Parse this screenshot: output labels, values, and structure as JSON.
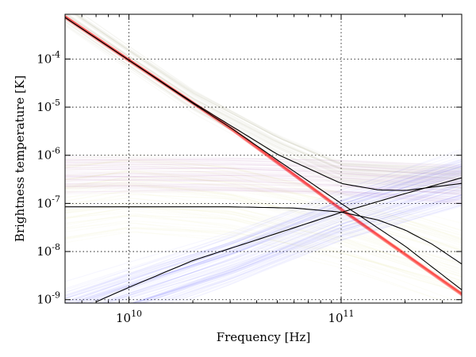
{
  "chart_data": {
    "type": "line",
    "xlabel": "Frequency [Hz]",
    "ylabel": "Brightness temperature [K]",
    "xscale": "log",
    "yscale": "log",
    "xlim": [
      5000000000.0,
      370000000000.0
    ],
    "ylim": [
      8.5e-10,
      0.00085
    ],
    "grid": true,
    "x_ticks": [
      {
        "value": 10000000000.0,
        "base": "10",
        "exp": "10"
      },
      {
        "value": 100000000000.0,
        "base": "10",
        "exp": "11"
      }
    ],
    "y_ticks": [
      {
        "value": 1e-09,
        "base": "10",
        "exp": "-9"
      },
      {
        "value": 1e-08,
        "base": "10",
        "exp": "-8"
      },
      {
        "value": 1e-07,
        "base": "10",
        "exp": "-7"
      },
      {
        "value": 1e-06,
        "base": "10",
        "exp": "-6"
      },
      {
        "value": 1e-05,
        "base": "10",
        "exp": "-5"
      },
      {
        "value": 0.0001,
        "base": "10",
        "exp": "-4"
      }
    ],
    "bands": [
      {
        "color": "#ff0000",
        "opacity": 0.05,
        "count": 60,
        "spread": 0.04,
        "x": [
          5000000000.0,
          10000000000.0,
          30000000000.0,
          100000000000.0,
          370000000000.0
        ],
        "y": [
          0.00075,
          9.5e-05,
          3.7e-06,
          7.5e-08,
          1.3e-09
        ]
      },
      {
        "color": "#0000ff",
        "opacity": 0.035,
        "count": 90,
        "spread": 0.55,
        "x": [
          5000000000.0,
          10000000000.0,
          30000000000.0,
          100000000000.0,
          370000000000.0
        ],
        "y": [
          5e-10,
          1.4e-09,
          7e-09,
          5.5e-08,
          3.2e-07
        ]
      },
      {
        "color": "#800080",
        "opacity": 0.03,
        "count": 60,
        "spread": 0.35,
        "x": [
          5000000000.0,
          10000000000.0,
          30000000000.0,
          100000000000.0,
          370000000000.0
        ],
        "y": [
          4e-07,
          4e-07,
          4e-07,
          3.5e-07,
          2.5e-07
        ]
      },
      {
        "color": "#c8c820",
        "opacity": 0.03,
        "count": 60,
        "spread": 0.8,
        "x": [
          5000000000.0,
          10000000000.0,
          30000000000.0,
          100000000000.0,
          370000000000.0
        ],
        "y": [
          1e-07,
          1.5e-07,
          1e-07,
          3e-08,
          5e-09
        ]
      },
      {
        "color": "#7a7a40",
        "opacity": 0.035,
        "count": 40,
        "spread": 0.25,
        "x": [
          5000000000.0,
          10000000000.0,
          20000000000.0,
          30000000000.0,
          50000000000.0,
          100000000000.0,
          370000000000.0
        ],
        "y": [
          0.0008,
          0.0001,
          1.3e-05,
          5e-06,
          1.5e-06,
          4e-07,
          3e-07
        ]
      }
    ],
    "series": [
      {
        "color": "#000000",
        "x": [
          5000000000.0,
          10000000000.0,
          20000000000.0,
          30000000000.0,
          50000000000.0,
          100000000000.0,
          200000000000.0,
          370000000000.0
        ],
        "y": [
          0.00073,
          9.4e-05,
          1.2e-05,
          3.8e-06,
          8e-07,
          1e-07,
          1.3e-08,
          1.6e-09
        ]
      },
      {
        "color": "#000000",
        "x": [
          5000000000.0,
          10000000000.0,
          20000000000.0,
          30000000000.0,
          50000000000.0,
          100000000000.0,
          150000000000.0,
          200000000000.0,
          370000000000.0
        ],
        "y": [
          0.00073,
          9.5e-05,
          1.25e-05,
          4.2e-06,
          1.05e-06,
          2.6e-07,
          1.9e-07,
          1.85e-07,
          2.6e-07
        ]
      },
      {
        "color": "#000000",
        "x": [
          7000000000.0,
          10000000000.0,
          20000000000.0,
          50000000000.0,
          100000000000.0,
          200000000000.0,
          370000000000.0
        ],
        "y": [
          9e-10,
          1.8e-09,
          6.5e-09,
          2.4e-08,
          6.5e-08,
          1.6e-07,
          3.4e-07
        ]
      },
      {
        "color": "#000000",
        "x": [
          5000000000.0,
          10000000000.0,
          30000000000.0,
          60000000000.0,
          100000000000.0,
          150000000000.0,
          200000000000.0,
          270000000000.0,
          370000000000.0
        ],
        "y": [
          8.5e-08,
          8.5e-08,
          8.5e-08,
          8e-08,
          6.6e-08,
          4.5e-08,
          2.8e-08,
          1.4e-08,
          5.5e-09
        ]
      }
    ]
  }
}
